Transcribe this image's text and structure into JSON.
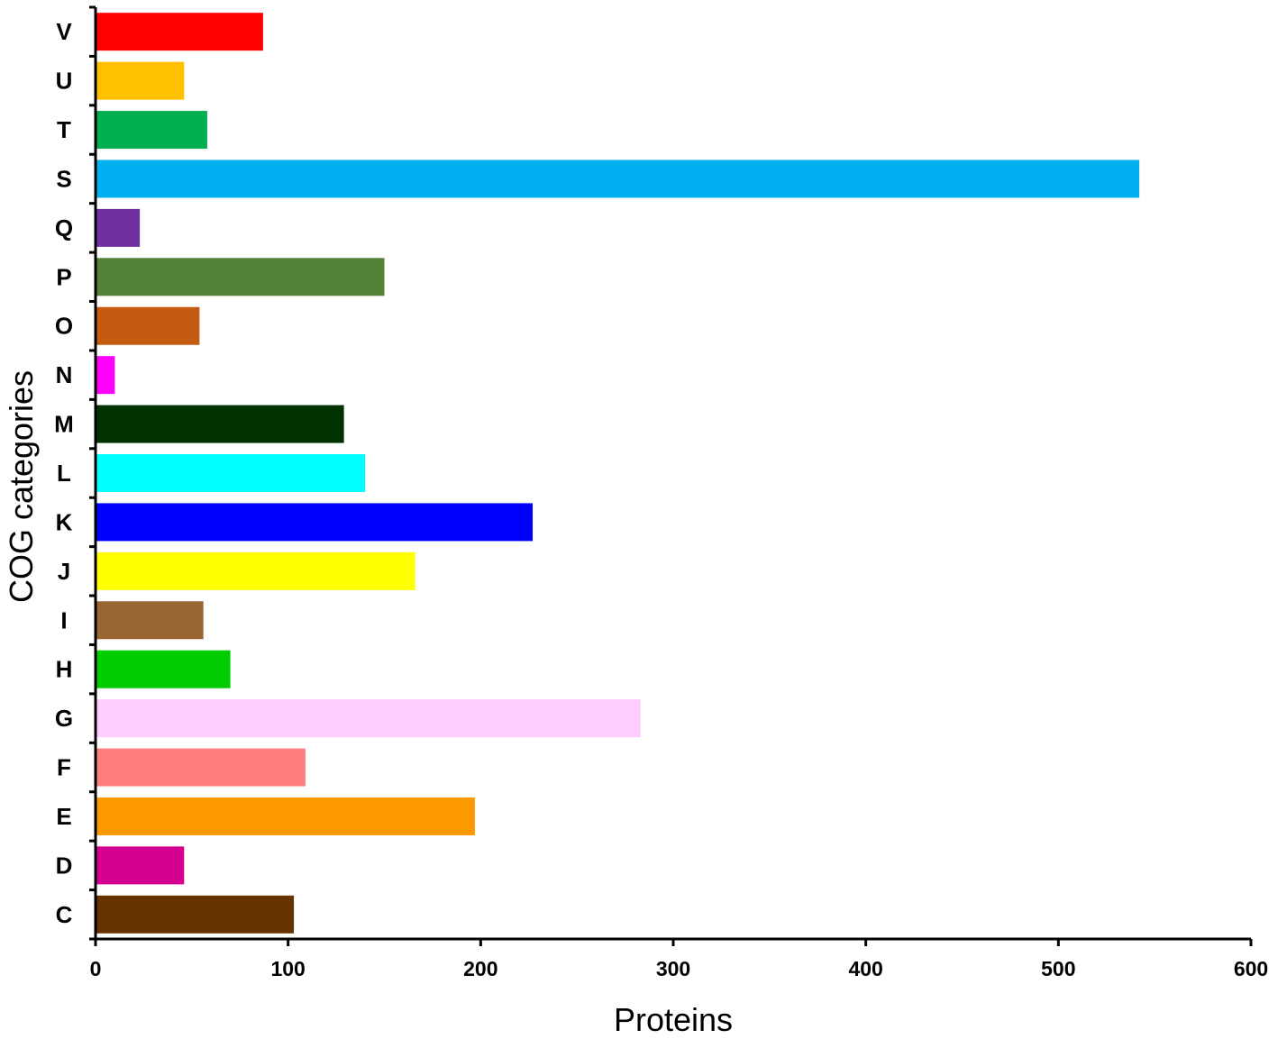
{
  "chart_data": {
    "type": "bar",
    "orientation": "horizontal",
    "xlabel": "Proteins",
    "ylabel": "COG categories",
    "xlim": [
      0,
      600
    ],
    "x_ticks": [
      0,
      100,
      200,
      300,
      400,
      500,
      600
    ],
    "grid": false,
    "legend": "none",
    "categories": [
      "V",
      "U",
      "T",
      "S",
      "Q",
      "P",
      "O",
      "N",
      "M",
      "L",
      "K",
      "J",
      "I",
      "H",
      "G",
      "F",
      "E",
      "D",
      "C"
    ],
    "values": [
      87,
      46,
      58,
      542,
      23,
      150,
      54,
      10,
      129,
      140,
      227,
      166,
      56,
      70,
      283,
      109,
      197,
      46,
      103
    ],
    "colors": [
      "#ff0000",
      "#ffc000",
      "#00b050",
      "#00b0f0",
      "#7030a0",
      "#538135",
      "#c55a11",
      "#ff00ff",
      "#003300",
      "#00ffff",
      "#0000ff",
      "#ffff00",
      "#996633",
      "#00cc00",
      "#ffccff",
      "#ff7f7f",
      "#ff9900",
      "#d5008f",
      "#663300"
    ]
  }
}
